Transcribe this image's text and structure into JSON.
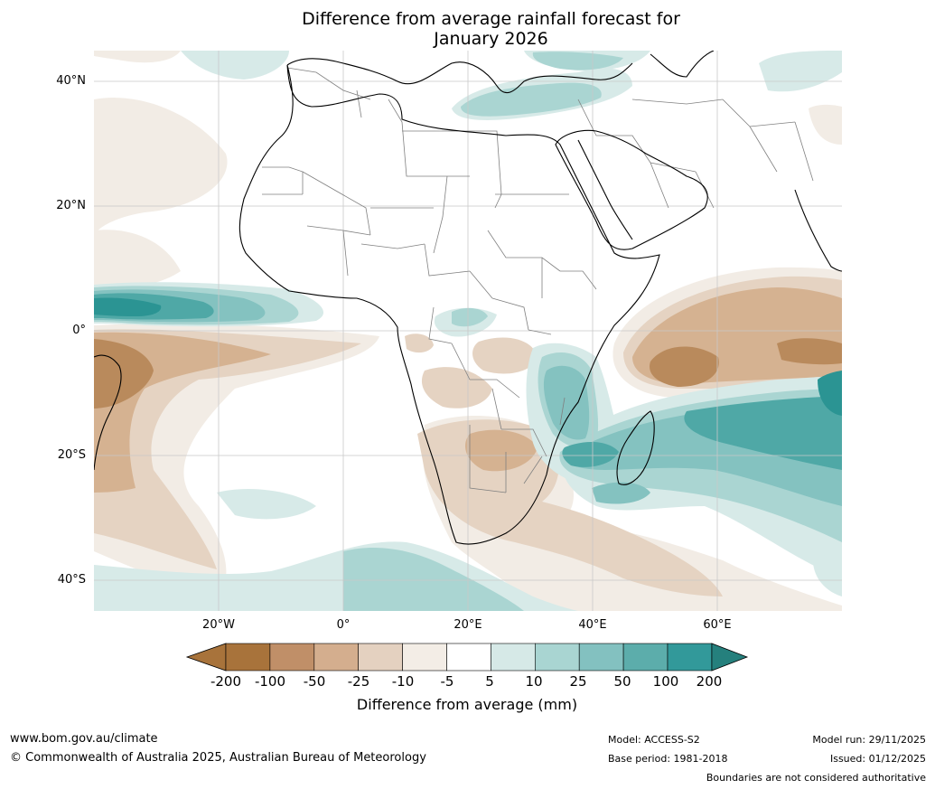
{
  "title": {
    "line1": "Difference from average rainfall forecast for",
    "line2": "January 2026"
  },
  "axes": {
    "lat_labels": [
      "40°N",
      "20°N",
      "0°",
      "20°S",
      "40°S"
    ],
    "lat_values": [
      40,
      20,
      0,
      -20,
      -40
    ],
    "lon_labels": [
      "20°W",
      "0°",
      "20°E",
      "40°E",
      "60°E"
    ],
    "lon_values": [
      -20,
      0,
      20,
      40,
      60
    ],
    "lat_range": [
      -45,
      45
    ],
    "lon_range": [
      -40,
      80
    ]
  },
  "legend": {
    "title": "Difference from average (mm)",
    "tick_labels": [
      "-200",
      "-100",
      "-50",
      "-25",
      "-10",
      "-5",
      "5",
      "10",
      "25",
      "50",
      "100",
      "200"
    ],
    "bin_colors": [
      "#a8733b",
      "#c08f68",
      "#d4ae8e",
      "#e4d1c0",
      "#f3ede6",
      "#ffffff",
      "#d6e9e7",
      "#a9d5d2",
      "#83c1c0",
      "#5cadab",
      "#32999a",
      "#25807d"
    ],
    "extend_low_color": "#a8733b",
    "extend_high_color": "#25807d"
  },
  "footer": {
    "website": "www.bom.gov.au/climate",
    "copyright": "© Commonwealth of Australia 2025, Australian Bureau of Meteorology",
    "model": "Model: ACCESS-S2",
    "base_period": "Base period: 1981-2018",
    "model_run": "Model run: 29/11/2025",
    "issued": "Issued: 01/12/2025",
    "disclaimer": "Boundaries are not considered authoritative"
  },
  "colors": {
    "dry_strong": "#b98a5c",
    "dry_moderate": "#d5b291",
    "dry_light": "#e5d3c2",
    "dry_faint": "#f2ece5",
    "wet_faint": "#d7eae8",
    "wet_light": "#aad5d2",
    "wet_moderate": "#84c2c0",
    "wet_strong": "#4fa8a6",
    "wet_max": "#2b9493",
    "grid": "#c8c8c8",
    "coast": "#000000",
    "border": "#808080"
  }
}
